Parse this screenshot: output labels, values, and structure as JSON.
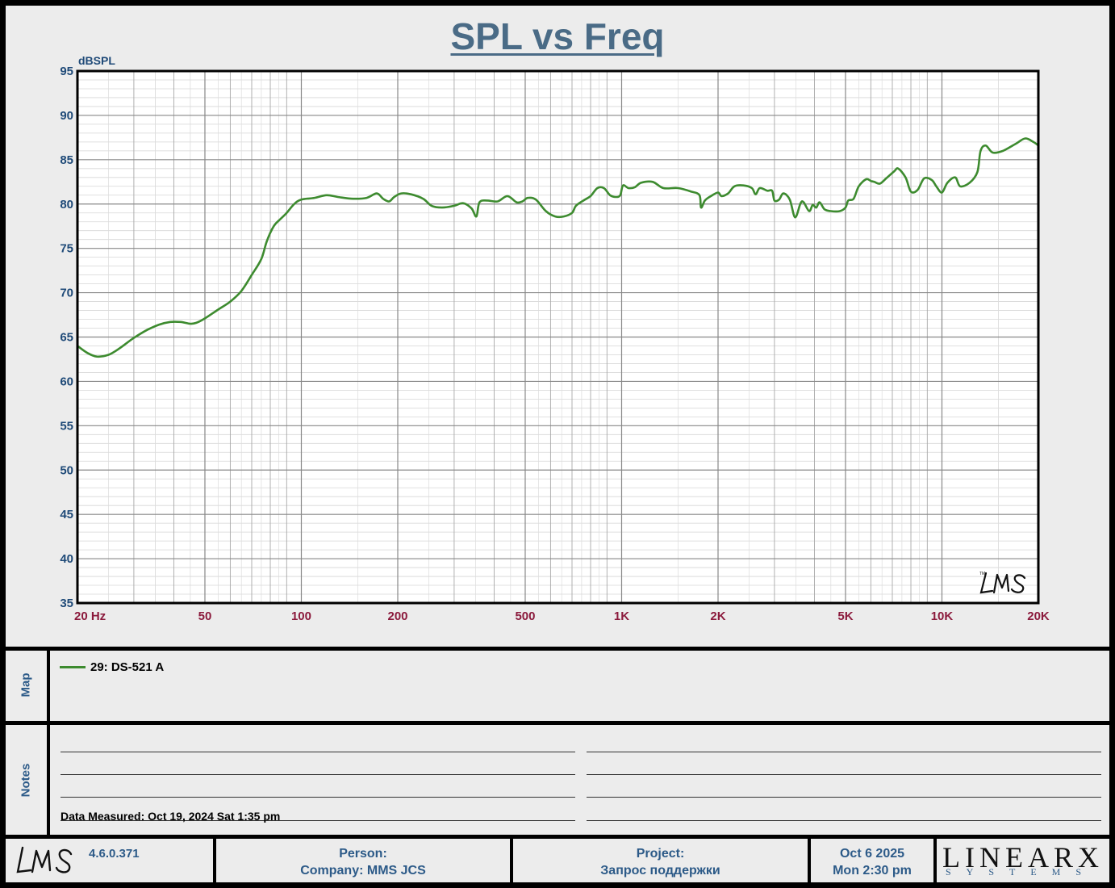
{
  "title": "SPL vs Freq",
  "chart_data": {
    "type": "line",
    "title": "SPL vs Freq",
    "ylabel": "dBSPL",
    "xlabel": "",
    "x_scale": "log",
    "xlim": [
      20,
      20000
    ],
    "ylim": [
      35,
      95
    ],
    "x_tick_labels": [
      {
        "value": 20,
        "label": "20  Hz"
      },
      {
        "value": 50,
        "label": "50"
      },
      {
        "value": 100,
        "label": "100"
      },
      {
        "value": 200,
        "label": "200"
      },
      {
        "value": 500,
        "label": "500"
      },
      {
        "value": 1000,
        "label": "1K"
      },
      {
        "value": 2000,
        "label": "2K"
      },
      {
        "value": 5000,
        "label": "5K"
      },
      {
        "value": 10000,
        "label": "10K"
      },
      {
        "value": 20000,
        "label": "20K"
      }
    ],
    "y_ticks": [
      35,
      40,
      45,
      50,
      55,
      60,
      65,
      70,
      75,
      80,
      85,
      90,
      95
    ],
    "grid": true,
    "line_color": "#3d8b2f",
    "series": [
      {
        "name": "29: DS-521 A",
        "points": [
          [
            20,
            64.0
          ],
          [
            21.5,
            63.2
          ],
          [
            23,
            62.8
          ],
          [
            25,
            63.0
          ],
          [
            27,
            63.7
          ],
          [
            30,
            64.9
          ],
          [
            33,
            65.8
          ],
          [
            36,
            66.4
          ],
          [
            39,
            66.7
          ],
          [
            42,
            66.7
          ],
          [
            45,
            66.5
          ],
          [
            47,
            66.6
          ],
          [
            50,
            67.1
          ],
          [
            55,
            68.1
          ],
          [
            60,
            69.0
          ],
          [
            65,
            70.2
          ],
          [
            70,
            72.0
          ],
          [
            75,
            73.8
          ],
          [
            78,
            75.8
          ],
          [
            82,
            77.5
          ],
          [
            86,
            78.3
          ],
          [
            90,
            79.0
          ],
          [
            95,
            80.0
          ],
          [
            100,
            80.5
          ],
          [
            110,
            80.7
          ],
          [
            120,
            81.0
          ],
          [
            130,
            80.8
          ],
          [
            145,
            80.6
          ],
          [
            160,
            80.7
          ],
          [
            172,
            81.2
          ],
          [
            180,
            80.6
          ],
          [
            188,
            80.3
          ],
          [
            195,
            80.8
          ],
          [
            205,
            81.2
          ],
          [
            220,
            81.1
          ],
          [
            240,
            80.6
          ],
          [
            255,
            79.8
          ],
          [
            275,
            79.6
          ],
          [
            300,
            79.8
          ],
          [
            320,
            80.1
          ],
          [
            340,
            79.5
          ],
          [
            352,
            78.6
          ],
          [
            360,
            80.2
          ],
          [
            380,
            80.4
          ],
          [
            410,
            80.3
          ],
          [
            440,
            80.9
          ],
          [
            470,
            80.2
          ],
          [
            490,
            80.3
          ],
          [
            510,
            80.7
          ],
          [
            540,
            80.5
          ],
          [
            580,
            79.2
          ],
          [
            620,
            78.6
          ],
          [
            660,
            78.6
          ],
          [
            700,
            79.0
          ],
          [
            720,
            79.8
          ],
          [
            760,
            80.4
          ],
          [
            800,
            80.9
          ],
          [
            840,
            81.8
          ],
          [
            880,
            81.8
          ],
          [
            920,
            81.0
          ],
          [
            960,
            80.8
          ],
          [
            990,
            81.0
          ],
          [
            1010,
            82.1
          ],
          [
            1050,
            81.8
          ],
          [
            1100,
            81.9
          ],
          [
            1150,
            82.4
          ],
          [
            1250,
            82.5
          ],
          [
            1350,
            81.8
          ],
          [
            1500,
            81.8
          ],
          [
            1650,
            81.4
          ],
          [
            1750,
            81.0
          ],
          [
            1770,
            79.6
          ],
          [
            1820,
            80.4
          ],
          [
            1900,
            80.9
          ],
          [
            2000,
            81.3
          ],
          [
            2050,
            80.9
          ],
          [
            2150,
            81.2
          ],
          [
            2250,
            82.0
          ],
          [
            2400,
            82.1
          ],
          [
            2550,
            81.8
          ],
          [
            2620,
            81.1
          ],
          [
            2700,
            81.8
          ],
          [
            2850,
            81.5
          ],
          [
            2950,
            81.5
          ],
          [
            3000,
            80.4
          ],
          [
            3100,
            80.5
          ],
          [
            3200,
            81.2
          ],
          [
            3350,
            80.5
          ],
          [
            3480,
            78.5
          ],
          [
            3620,
            80.1
          ],
          [
            3700,
            80.2
          ],
          [
            3850,
            79.2
          ],
          [
            3950,
            79.9
          ],
          [
            4050,
            79.6
          ],
          [
            4150,
            80.2
          ],
          [
            4300,
            79.4
          ],
          [
            4500,
            79.2
          ],
          [
            4800,
            79.2
          ],
          [
            5000,
            79.6
          ],
          [
            5100,
            80.4
          ],
          [
            5300,
            80.6
          ],
          [
            5500,
            82.0
          ],
          [
            5800,
            82.8
          ],
          [
            6000,
            82.6
          ],
          [
            6150,
            82.5
          ],
          [
            6400,
            82.3
          ],
          [
            6700,
            82.9
          ],
          [
            7100,
            83.7
          ],
          [
            7300,
            84.0
          ],
          [
            7700,
            83.0
          ],
          [
            8000,
            81.4
          ],
          [
            8400,
            81.6
          ],
          [
            8800,
            82.9
          ],
          [
            9300,
            82.7
          ],
          [
            9600,
            82.0
          ],
          [
            10000,
            81.3
          ],
          [
            10400,
            82.4
          ],
          [
            11000,
            83.0
          ],
          [
            11400,
            82.0
          ],
          [
            12200,
            82.4
          ],
          [
            12900,
            83.6
          ],
          [
            13200,
            86.0
          ],
          [
            13700,
            86.6
          ],
          [
            14400,
            85.8
          ],
          [
            15500,
            86.0
          ],
          [
            17000,
            86.8
          ],
          [
            18200,
            87.4
          ],
          [
            19300,
            87.0
          ],
          [
            20000,
            86.6
          ]
        ]
      }
    ]
  },
  "map": {
    "side_label": "Map",
    "legend_label": "29: DS-521 A"
  },
  "notes": {
    "side_label": "Notes",
    "data_measured": "Data Measured: Oct 19, 2024  Sat  1:35 pm"
  },
  "footer": {
    "version": "4.6.0.371",
    "person_label": "Person:",
    "company": "Company: MMS JCS",
    "project_label": "Project:",
    "project_name": "Запрос поддержки",
    "date": "Oct  6 2025",
    "time": "Mon  2:30 pm",
    "lms_logo_text": "LMS",
    "linearx_logo_text": "LINEARX",
    "linearx_sub_text": "SYSTEMS"
  }
}
